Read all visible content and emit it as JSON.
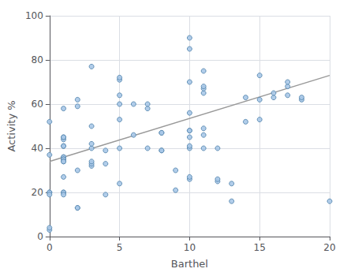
{
  "chart_data": {
    "type": "scatter",
    "xlabel": "Barthel",
    "ylabel": "Activity %",
    "xlim": [
      0,
      20
    ],
    "ylim": [
      0,
      100
    ],
    "xticks": [
      0,
      5,
      10,
      15,
      20
    ],
    "yticks": [
      0,
      20,
      40,
      60,
      80,
      100
    ],
    "grid": true,
    "series": [
      {
        "type": "scatter",
        "marker": "circle",
        "color": "#a8c8e8",
        "edge_color": "#5a8ab0",
        "x": [
          0,
          0,
          0,
          0,
          0,
          0,
          0,
          1,
          1,
          1,
          1,
          1,
          1,
          1,
          1,
          1,
          1,
          1,
          1,
          1,
          1,
          1,
          1,
          2,
          2,
          2,
          2,
          2,
          3,
          3,
          3,
          3,
          3,
          3,
          3,
          4,
          4,
          4,
          5,
          5,
          5,
          5,
          5,
          5,
          5,
          6,
          6,
          7,
          7,
          7,
          8,
          8,
          8,
          8,
          9,
          9,
          10,
          10,
          10,
          10,
          10,
          10,
          10,
          10,
          10,
          10,
          10,
          11,
          11,
          11,
          11,
          11,
          11,
          11,
          12,
          12,
          12,
          13,
          13,
          14,
          14,
          15,
          15,
          15,
          16,
          16,
          17,
          17,
          17,
          18,
          18,
          20
        ],
        "values": [
          3,
          4,
          20,
          20,
          19,
          37,
          52,
          20,
          20,
          19,
          27,
          36,
          36,
          35,
          35,
          34,
          34,
          41,
          41,
          44,
          45,
          45,
          58,
          13,
          13,
          30,
          59,
          62,
          32,
          33,
          34,
          40,
          42,
          50,
          77,
          19,
          33,
          39,
          24,
          40,
          53,
          60,
          64,
          71,
          72,
          46,
          60,
          40,
          58,
          60,
          39,
          39,
          47,
          47,
          21,
          30,
          26,
          27,
          40,
          41,
          45,
          48,
          48,
          56,
          70,
          90,
          85,
          40,
          46,
          49,
          65,
          67,
          68,
          75,
          25,
          26,
          40,
          16,
          24,
          52,
          63,
          53,
          62,
          73,
          63,
          65,
          64,
          68,
          70,
          62,
          63,
          16
        ]
      },
      {
        "type": "line",
        "line_style": "solid",
        "color": "#999999",
        "x": [
          0,
          20
        ],
        "values": [
          34,
          73
        ]
      }
    ]
  }
}
